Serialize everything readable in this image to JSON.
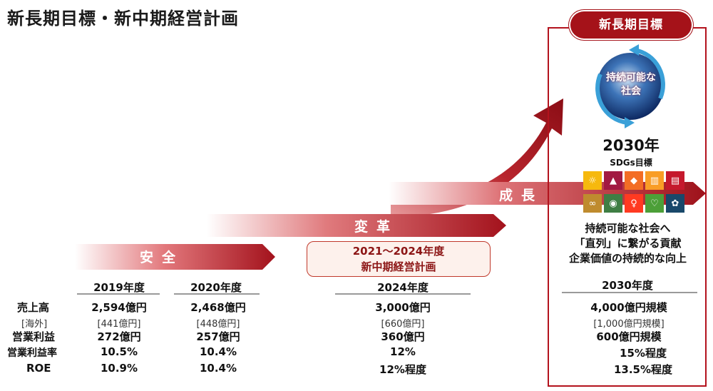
{
  "title": "新長期目標・新中期経営計画",
  "bands": {
    "anzen": "安全",
    "henkaku": "変革",
    "seicho": "成長"
  },
  "plan_box": {
    "line1": "2021～2024年度",
    "line2": "新中期経営計画"
  },
  "target": {
    "tag": "新長期目標",
    "globe_line1": "持続可能な",
    "globe_line2": "社会",
    "year": "2030年",
    "sdgs_label": "SDGs目標",
    "vision_line1": "持続可能な社会へ",
    "vision_line2": "「直列」に繋がる貢献",
    "vision_line3": "企業価値の持続的な向上"
  },
  "sdg_icons": [
    {
      "number": "7",
      "color": "#f6b90e",
      "glyph": "☼"
    },
    {
      "number": "8",
      "color": "#a21942",
      "glyph": "▲"
    },
    {
      "number": "9",
      "color": "#f36d25",
      "glyph": "◆"
    },
    {
      "number": "11",
      "color": "#f99d26",
      "glyph": "▥"
    },
    {
      "number": "4",
      "color": "#c5192d",
      "glyph": "▤"
    },
    {
      "number": "12",
      "color": "#bf8b2e",
      "glyph": "∞"
    },
    {
      "number": "13",
      "color": "#3f7e44",
      "glyph": "◉"
    },
    {
      "number": "5",
      "color": "#ff3a21",
      "glyph": "♀"
    },
    {
      "number": "3",
      "color": "#4c9f38",
      "glyph": "♡"
    },
    {
      "number": "17",
      "color": "#19486a",
      "glyph": "✿"
    }
  ],
  "row_labels": [
    "売上高",
    "[海外]",
    "営業利益",
    "営業利益率",
    "ROE"
  ],
  "columns": [
    {
      "header": "2019年度",
      "values": [
        "2,594億円",
        "[441億円]",
        "272億円",
        "10.5%",
        "10.9%"
      ]
    },
    {
      "header": "2020年度",
      "values": [
        "2,468億円",
        "[448億円]",
        "257億円",
        "10.4%",
        "10.4%"
      ]
    },
    {
      "header": "2024年度",
      "values": [
        "3,000億円",
        "[660億円]",
        "360億円",
        "12%",
        "12%程度"
      ]
    },
    {
      "header": "2030年度",
      "values": [
        "4,000億円規模",
        "[1,000億円規模]",
        "600億円規模",
        "15%程度",
        "13.5%程度"
      ]
    }
  ]
}
